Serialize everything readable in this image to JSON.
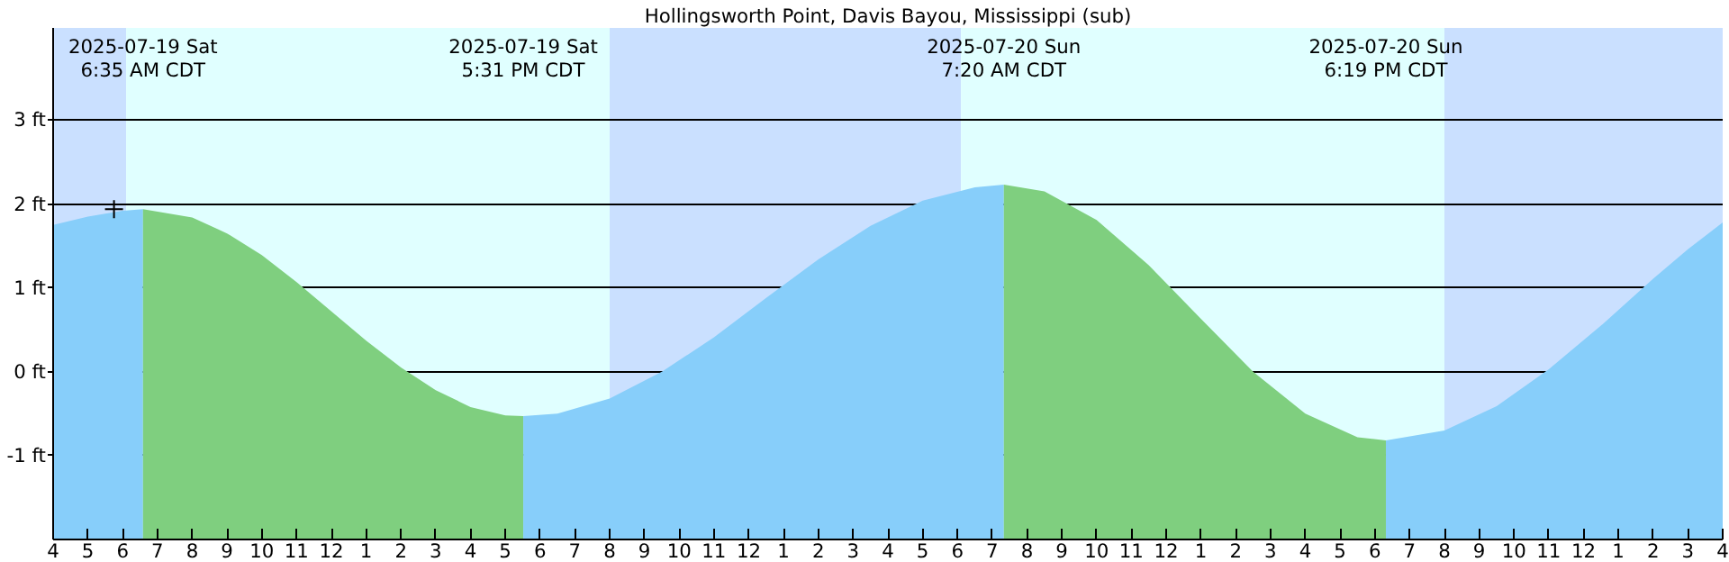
{
  "chart_data": {
    "type": "area",
    "title": "Hollingsworth Point, Davis Bayou, Mississippi (sub)",
    "series": [
      {
        "color": "#87cefa",
        "x": [
          "2025-07-19T04:00",
          "2025-07-19T05:00",
          "2025-07-19T06:00",
          "2025-07-19T06:35"
        ],
        "values": [
          1.75,
          1.85,
          1.92,
          1.94
        ]
      },
      {
        "color": "#7fcf7f",
        "x": [
          "2025-07-19T06:35",
          "2025-07-19T08:00",
          "2025-07-19T09:00",
          "2025-07-19T10:00",
          "2025-07-19T11:00",
          "2025-07-19T12:00",
          "2025-07-19T13:00",
          "2025-07-19T14:00",
          "2025-07-19T15:00",
          "2025-07-19T16:00",
          "2025-07-19T17:00",
          "2025-07-19T17:31"
        ],
        "values": [
          1.94,
          1.84,
          1.65,
          1.39,
          1.07,
          0.72,
          0.37,
          0.05,
          -0.22,
          -0.42,
          -0.52,
          -0.53
        ]
      },
      {
        "color": "#87cefa",
        "x": [
          "2025-07-19T17:31",
          "2025-07-19T18:30",
          "2025-07-19T20:00",
          "2025-07-19T21:30",
          "2025-07-19T23:00",
          "2025-07-20T00:30",
          "2025-07-20T02:00",
          "2025-07-20T03:30",
          "2025-07-20T05:00",
          "2025-07-20T06:30",
          "2025-07-20T07:20"
        ],
        "values": [
          -0.53,
          -0.5,
          -0.32,
          0.0,
          0.41,
          0.88,
          1.34,
          1.74,
          2.04,
          2.2,
          2.23
        ]
      },
      {
        "color": "#7fcf7f",
        "x": [
          "2025-07-20T07:20",
          "2025-07-20T08:30",
          "2025-07-20T10:00",
          "2025-07-20T11:30",
          "2025-07-20T13:00",
          "2025-07-20T14:30",
          "2025-07-20T16:00",
          "2025-07-20T17:30",
          "2025-07-20T18:19"
        ],
        "values": [
          2.23,
          2.15,
          1.81,
          1.27,
          0.63,
          0.0,
          -0.5,
          -0.78,
          -0.82
        ]
      },
      {
        "color": "#87cefa",
        "x": [
          "2025-07-20T18:19",
          "2025-07-20T20:00",
          "2025-07-20T21:30",
          "2025-07-20T23:00",
          "2025-07-21T00:30",
          "2025-07-21T02:00",
          "2025-07-21T03:00",
          "2025-07-21T04:00"
        ],
        "values": [
          -0.82,
          -0.7,
          -0.41,
          0.03,
          0.55,
          1.11,
          1.46,
          1.78
        ]
      },
      {
        "type": "scatter",
        "marker": "cross",
        "color": "#000000",
        "x": [
          "2025-07-19T05:45"
        ],
        "values": [
          1.94
        ]
      }
    ],
    "annotations": [
      "2025-07-19 Sat\n6:35 AM CDT",
      "2025-07-19 Sat\n5:31 PM CDT",
      "2025-07-20 Sun\n7:20 AM CDT",
      "2025-07-20 Sun\n6:19 PM CDT"
    ],
    "bands": [
      {
        "axis": "x",
        "from": "2025-07-19T04:00",
        "to": "2025-07-19T06:06",
        "color": "#cae0ff"
      },
      {
        "axis": "x",
        "from": "2025-07-19T06:06",
        "to": "2025-07-19T20:00",
        "color": "#e0ffff"
      },
      {
        "axis": "x",
        "from": "2025-07-19T20:00",
        "to": "2025-07-20T06:06",
        "color": "#cae0ff"
      },
      {
        "axis": "x",
        "from": "2025-07-20T06:06",
        "to": "2025-07-20T20:00",
        "color": "#e0ffff"
      },
      {
        "axis": "x",
        "from": "2025-07-20T20:00",
        "to": "2025-07-21T04:00",
        "color": "#cae0ff"
      }
    ],
    "xlim": [
      "2025-07-19T04:00",
      "2025-07-21T04:00"
    ],
    "xticks": [
      {
        "value": "2025-07-19T04:00",
        "label": "4"
      },
      {
        "value": "2025-07-19T05:00",
        "label": "5"
      },
      {
        "value": "2025-07-19T06:00",
        "label": "6"
      },
      {
        "value": "2025-07-19T07:00",
        "label": "7"
      },
      {
        "value": "2025-07-19T08:00",
        "label": "8"
      },
      {
        "value": "2025-07-19T09:00",
        "label": "9"
      },
      {
        "value": "2025-07-19T10:00",
        "label": "10"
      },
      {
        "value": "2025-07-19T11:00",
        "label": "11"
      },
      {
        "value": "2025-07-19T12:00",
        "label": "12"
      },
      {
        "value": "2025-07-19T13:00",
        "label": "1"
      },
      {
        "value": "2025-07-19T14:00",
        "label": "2"
      },
      {
        "value": "2025-07-19T15:00",
        "label": "3"
      },
      {
        "value": "2025-07-19T16:00",
        "label": "4"
      },
      {
        "value": "2025-07-19T17:00",
        "label": "5"
      },
      {
        "value": "2025-07-19T18:00",
        "label": "6"
      },
      {
        "value": "2025-07-19T19:00",
        "label": "7"
      },
      {
        "value": "2025-07-19T20:00",
        "label": "8"
      },
      {
        "value": "2025-07-19T21:00",
        "label": "9"
      },
      {
        "value": "2025-07-19T22:00",
        "label": "10"
      },
      {
        "value": "2025-07-19T23:00",
        "label": "11"
      },
      {
        "value": "2025-07-20T00:00",
        "label": "12"
      },
      {
        "value": "2025-07-20T01:00",
        "label": "1"
      },
      {
        "value": "2025-07-20T02:00",
        "label": "2"
      },
      {
        "value": "2025-07-20T03:00",
        "label": "3"
      },
      {
        "value": "2025-07-20T04:00",
        "label": "4"
      },
      {
        "value": "2025-07-20T05:00",
        "label": "5"
      },
      {
        "value": "2025-07-20T06:00",
        "label": "6"
      },
      {
        "value": "2025-07-20T07:00",
        "label": "7"
      },
      {
        "value": "2025-07-20T08:00",
        "label": "8"
      },
      {
        "value": "2025-07-20T09:00",
        "label": "9"
      },
      {
        "value": "2025-07-20T10:00",
        "label": "10"
      },
      {
        "value": "2025-07-20T11:00",
        "label": "11"
      },
      {
        "value": "2025-07-20T12:00",
        "label": "12"
      },
      {
        "value": "2025-07-20T13:00",
        "label": "1"
      },
      {
        "value": "2025-07-20T14:00",
        "label": "2"
      },
      {
        "value": "2025-07-20T15:00",
        "label": "3"
      },
      {
        "value": "2025-07-20T16:00",
        "label": "4"
      },
      {
        "value": "2025-07-20T17:00",
        "label": "5"
      },
      {
        "value": "2025-07-20T18:00",
        "label": "6"
      },
      {
        "value": "2025-07-20T19:00",
        "label": "7"
      },
      {
        "value": "2025-07-20T20:00",
        "label": "8"
      },
      {
        "value": "2025-07-20T21:00",
        "label": "9"
      },
      {
        "value": "2025-07-20T22:00",
        "label": "10"
      },
      {
        "value": "2025-07-20T23:00",
        "label": "11"
      },
      {
        "value": "2025-07-21T00:00",
        "label": "12"
      },
      {
        "value": "2025-07-21T01:00",
        "label": "1"
      },
      {
        "value": "2025-07-21T02:00",
        "label": "2"
      },
      {
        "value": "2025-07-21T03:00",
        "label": "3"
      },
      {
        "value": "2025-07-21T04:00",
        "label": "4"
      }
    ],
    "ylim": [
      -2.0,
      4.1
    ],
    "yticks": [
      {
        "value": -1,
        "label": "-1 ft"
      },
      {
        "value": 0,
        "label": "0 ft"
      },
      {
        "value": 1,
        "label": "1 ft"
      },
      {
        "value": 2,
        "label": "2 ft"
      },
      {
        "value": 3,
        "label": "3 ft"
      }
    ],
    "grid": "y"
  }
}
